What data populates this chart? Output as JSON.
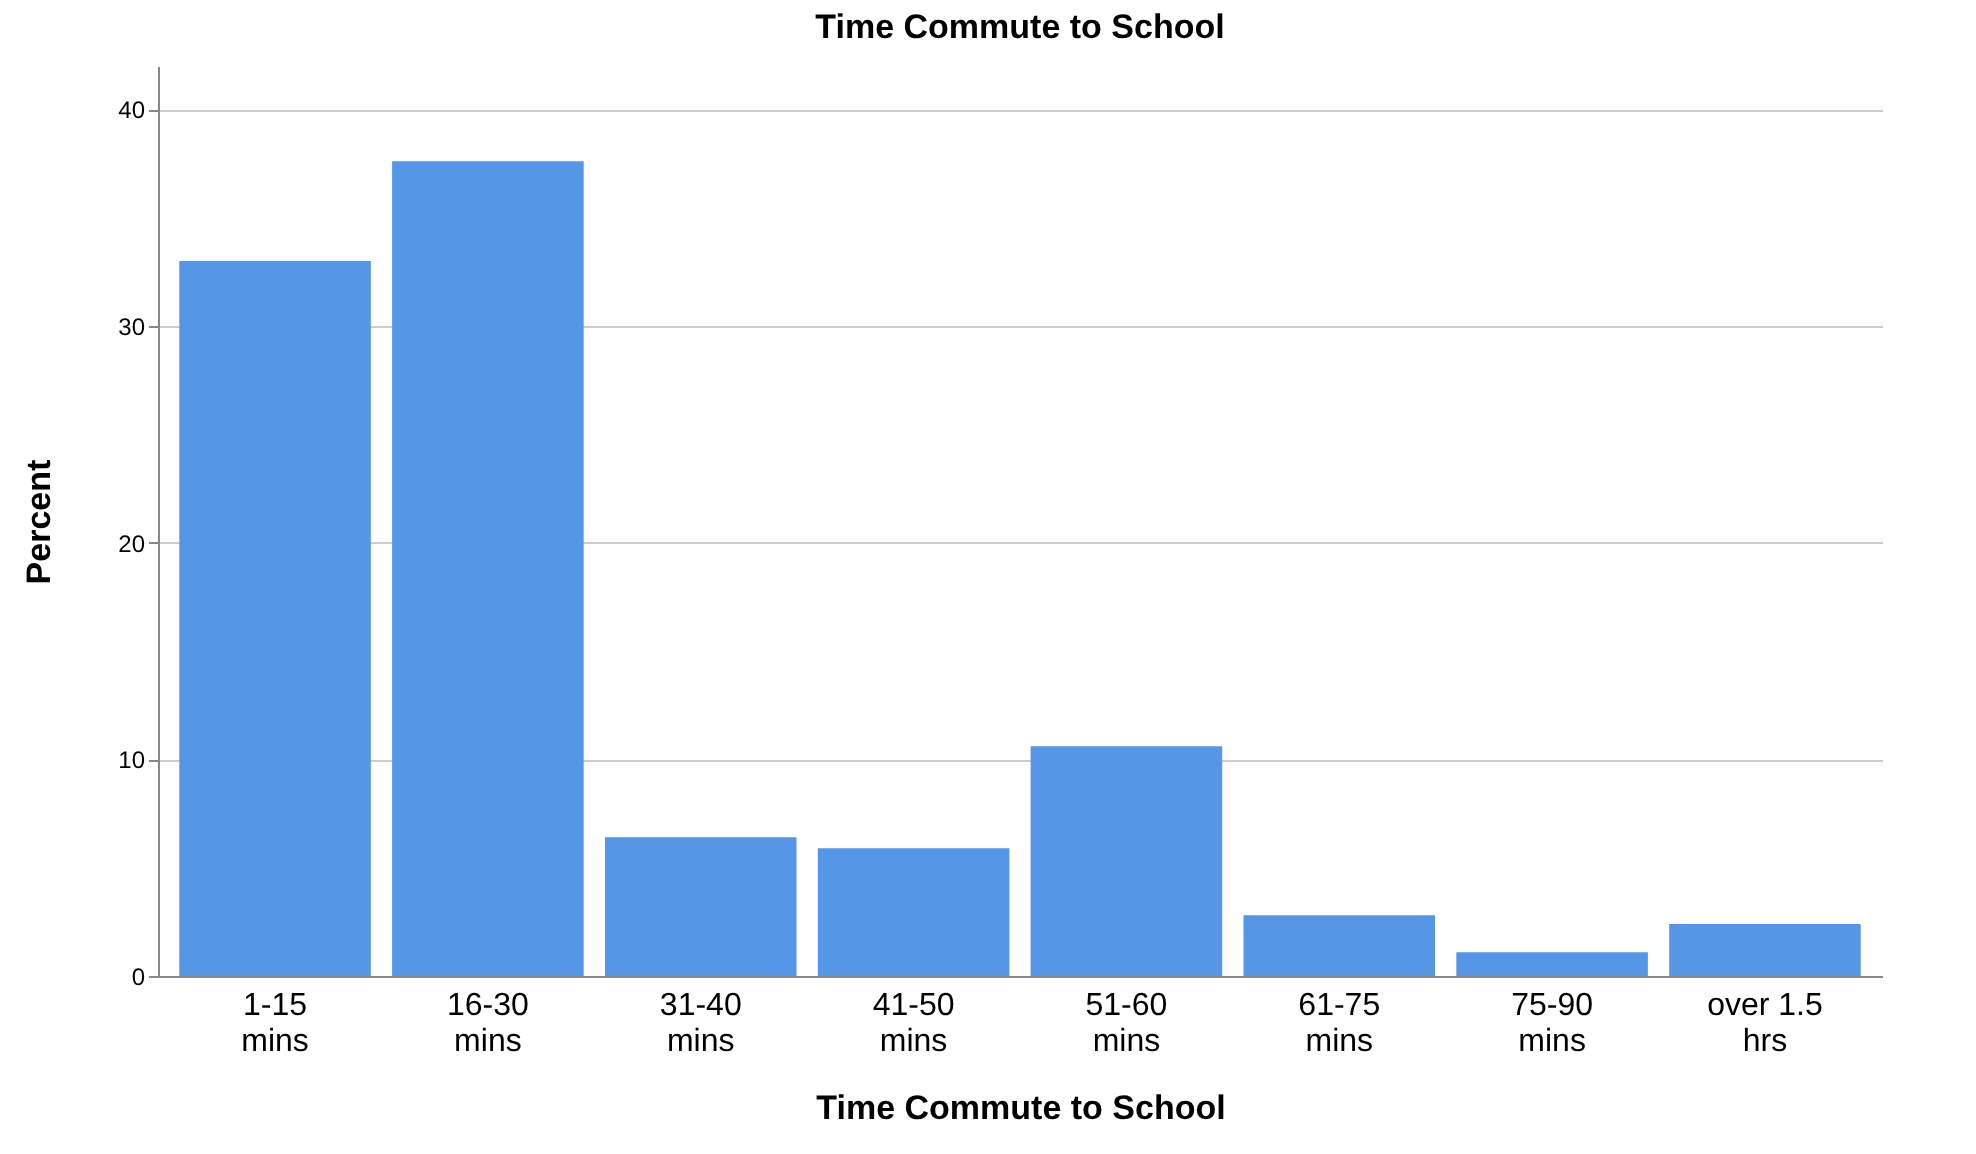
{
  "chart_data": {
    "type": "bar",
    "title": "Time Commute to School",
    "xlabel": "Time Commute to School",
    "ylabel": "Percent",
    "categories": [
      "1-15 mins",
      "16-30 mins",
      "31-40 mins",
      "41-50 mins",
      "51-60 mins",
      "61-75 mins",
      "75-90 mins",
      "over 1.5 hrs"
    ],
    "values": [
      33.0,
      37.6,
      6.4,
      5.9,
      10.6,
      2.8,
      1.1,
      2.4
    ],
    "color": "#5596e6",
    "ylim": [
      0,
      42
    ],
    "yticks": [
      0,
      10,
      20,
      30,
      40
    ],
    "grid": "y"
  }
}
